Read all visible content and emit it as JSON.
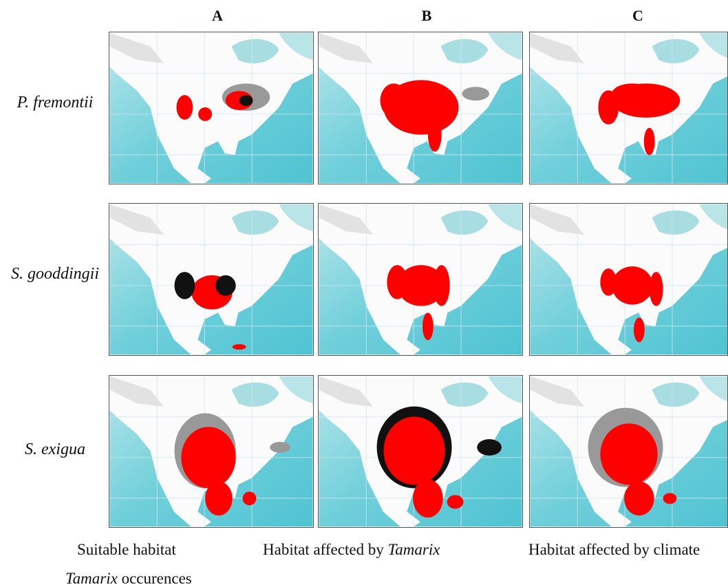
{
  "columns": [
    "A",
    "B",
    "C"
  ],
  "rows": [
    "P. fremontii",
    "S. gooddingii",
    "S. exigua"
  ],
  "legend": [
    {
      "parts": [
        {
          "text": "Suitable habitat",
          "italic": false
        }
      ]
    },
    {
      "parts": [
        {
          "text": "Habitat affected by ",
          "italic": false
        },
        {
          "text": "Tamarix",
          "italic": true
        }
      ]
    },
    {
      "parts": [
        {
          "text": "Habitat affected by climate",
          "italic": false
        }
      ]
    },
    {
      "parts": [
        {
          "text": "Tamarix",
          "italic": true
        },
        {
          "text": " occurences",
          "italic": false
        }
      ]
    }
  ]
}
